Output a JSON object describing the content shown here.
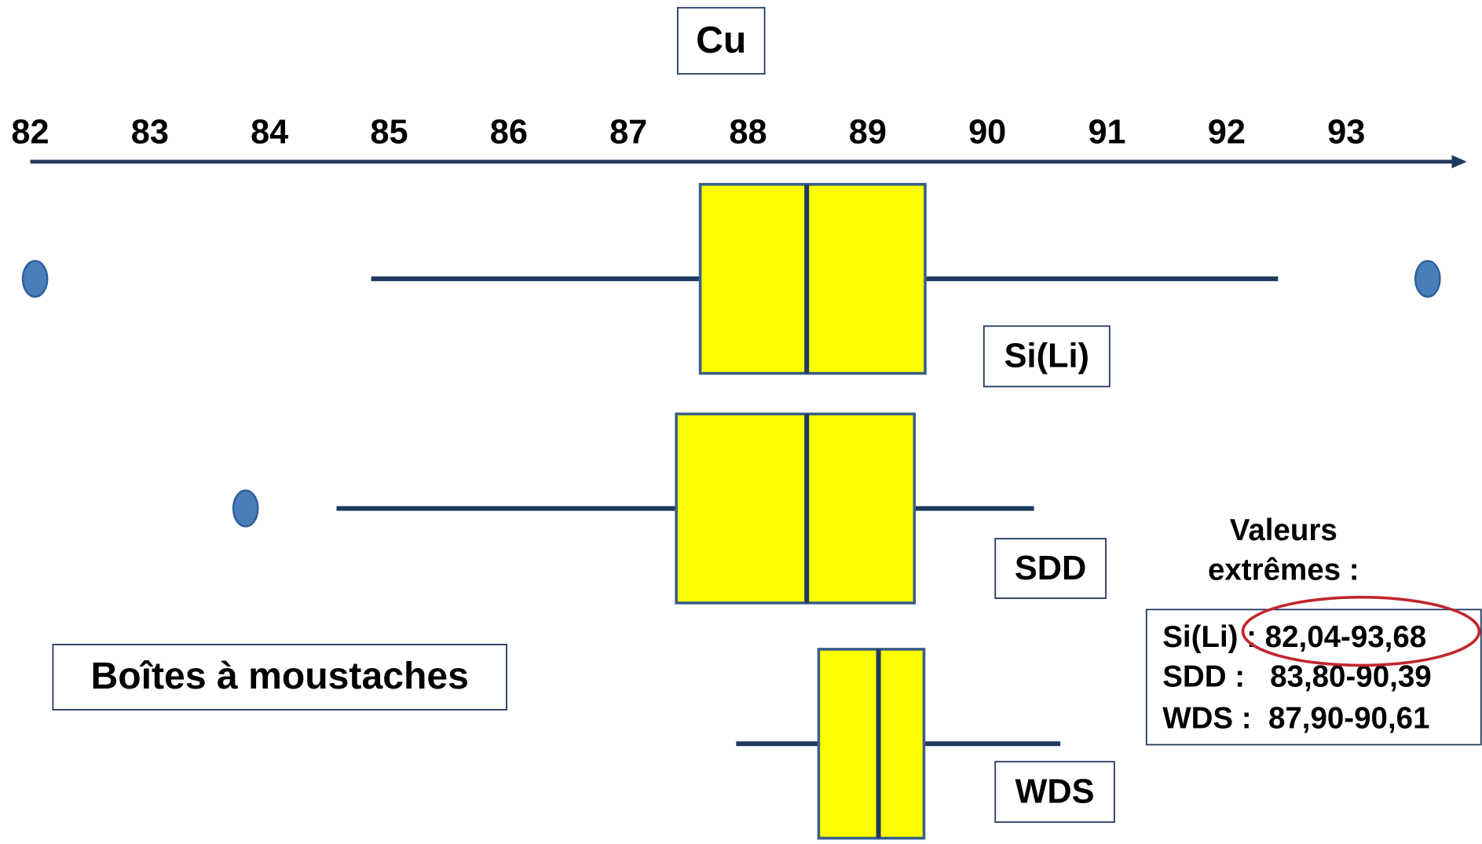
{
  "chart_data": {
    "type": "boxplot",
    "title": "Cu",
    "subtitle": "Boîtes à moustaches",
    "xlim": [
      82,
      94
    ],
    "xticks": [
      82,
      83,
      84,
      85,
      86,
      87,
      88,
      89,
      90,
      91,
      92,
      93
    ],
    "box_color": "#ffff00",
    "line_color": "#1f3a5f",
    "outlier_color": "#4a7ebb",
    "series": [
      {
        "name": "Si(Li)",
        "whisker_low": 84.85,
        "q1": 87.6,
        "median": 88.49,
        "q3": 89.48,
        "whisker_high": 92.43,
        "outliers": [
          82.04,
          93.68
        ]
      },
      {
        "name": "SDD",
        "whisker_low": 84.56,
        "q1": 87.4,
        "median": 88.49,
        "q3": 89.39,
        "whisker_high": 90.39,
        "outliers": [
          83.8
        ]
      },
      {
        "name": "WDS",
        "whisker_low": 87.9,
        "q1": 88.59,
        "median": 89.09,
        "q3": 89.47,
        "whisker_high": 90.61,
        "outliers": []
      }
    ],
    "extremes_title": [
      "Valeurs",
      "extrêmes :"
    ],
    "extremes_rows": [
      "Si(Li) : 82,04-93,68",
      "SDD :   83,80-90,39",
      "WDS :  87,90-90,61"
    ]
  }
}
